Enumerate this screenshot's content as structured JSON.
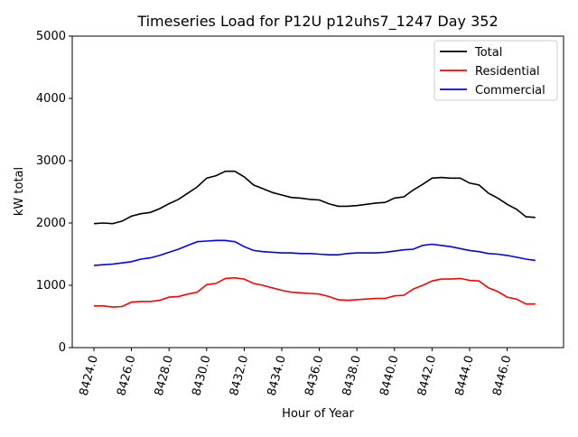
{
  "chart_data": {
    "type": "line",
    "title": "Timeseries Load for P12U p12uhs7_1247  Day 352",
    "xlabel": "Hour of Year",
    "ylabel": "kW total",
    "ylim": [
      0,
      5000
    ],
    "xlim": [
      8422.8,
      8449
    ],
    "xticks": [
      "8424.0",
      "8426.0",
      "8428.0",
      "8430.0",
      "8432.0",
      "8434.0",
      "8436.0",
      "8438.0",
      "8440.0",
      "8442.0",
      "8444.0",
      "8446.0"
    ],
    "xtick_values": [
      8424,
      8426,
      8428,
      8430,
      8432,
      8434,
      8436,
      8438,
      8440,
      8442,
      8444,
      8446
    ],
    "yticks": [
      "0",
      "1000",
      "2000",
      "3000",
      "4000",
      "5000"
    ],
    "ytick_values": [
      0,
      1000,
      2000,
      3000,
      4000,
      5000
    ],
    "legend_position": "top-right",
    "x_start": 8424,
    "x_step": 0.5,
    "series": [
      {
        "name": "Total",
        "color": "#000000",
        "values": [
          1990,
          2000,
          1990,
          2030,
          2110,
          2150,
          2170,
          2230,
          2310,
          2380,
          2480,
          2580,
          2720,
          2760,
          2830,
          2830,
          2740,
          2610,
          2550,
          2490,
          2450,
          2410,
          2400,
          2380,
          2370,
          2310,
          2270,
          2270,
          2280,
          2300,
          2320,
          2330,
          2400,
          2420,
          2530,
          2620,
          2720,
          2730,
          2720,
          2720,
          2640,
          2610,
          2480,
          2400,
          2300,
          2220,
          2100,
          2090
        ]
      },
      {
        "name": "Residential",
        "color": "#ff0000",
        "values": [
          670,
          670,
          650,
          660,
          730,
          740,
          740,
          760,
          810,
          820,
          860,
          890,
          1010,
          1030,
          1110,
          1120,
          1100,
          1030,
          1000,
          960,
          920,
          890,
          880,
          870,
          860,
          820,
          770,
          760,
          770,
          780,
          790,
          790,
          830,
          840,
          940,
          1000,
          1070,
          1100,
          1100,
          1110,
          1080,
          1070,
          960,
          900,
          810,
          780,
          700,
          700
        ]
      },
      {
        "name": "Commercial",
        "color": "#0000ff",
        "values": [
          1320,
          1330,
          1340,
          1360,
          1380,
          1420,
          1440,
          1480,
          1530,
          1580,
          1640,
          1700,
          1710,
          1720,
          1720,
          1700,
          1620,
          1560,
          1540,
          1530,
          1520,
          1520,
          1510,
          1510,
          1500,
          1490,
          1490,
          1510,
          1520,
          1520,
          1520,
          1530,
          1550,
          1570,
          1580,
          1640,
          1660,
          1640,
          1620,
          1590,
          1560,
          1540,
          1510,
          1500,
          1480,
          1450,
          1420,
          1400
        ]
      }
    ]
  }
}
